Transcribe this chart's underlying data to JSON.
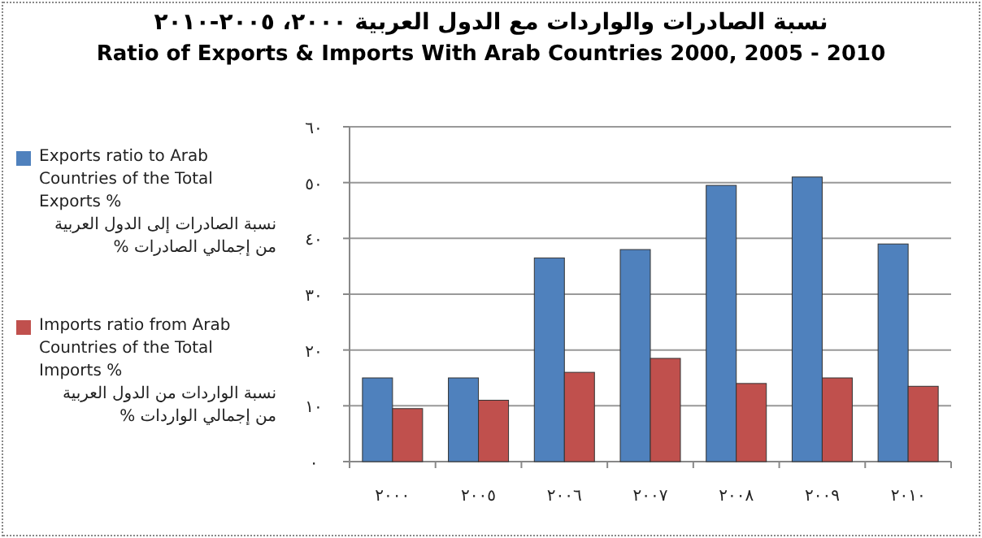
{
  "chart_data": {
    "type": "bar",
    "title": "نسبة الصادرات والواردات مع الدول العربية ٢٠٠٠، ٢٠٠٥-٢٠١٠",
    "subtitle": "Ratio of Exports & Imports With Arab Countries 2000, 2005 - 2010",
    "categories": [
      "٢٠٠٠",
      "٢٠٠٥",
      "٢٠٠٦",
      "٢٠٠٧",
      "٢٠٠٨",
      "٢٠٠٩",
      "٢٠١٠"
    ],
    "series": [
      {
        "name": "Exports ratio to Arab Countries of the Total Exports %\nنسبة الصادرات إلى الدول العربية من إجمالي الصادرات %",
        "color": "#4f81bd",
        "values": [
          15,
          15,
          36.5,
          38,
          49.5,
          51,
          39
        ]
      },
      {
        "name": "Imports ratio from Arab Countries of the Total Imports %\nنسبة الواردات من الدول العربية من إجمالي الواردات %",
        "color": "#c0504d",
        "values": [
          9.5,
          11,
          16,
          18.5,
          14,
          15,
          13.5
        ]
      }
    ],
    "ylim": [
      0,
      60
    ],
    "yticks": [
      {
        "value": 0,
        "label": "٠"
      },
      {
        "value": 10,
        "label": "١٠"
      },
      {
        "value": 20,
        "label": "٢٠"
      },
      {
        "value": 30,
        "label": "٣٠"
      },
      {
        "value": 40,
        "label": "٤٠"
      },
      {
        "value": 50,
        "label": "٥٠"
      },
      {
        "value": 60,
        "label": "٦٠"
      }
    ],
    "grid": "y",
    "legend": "left"
  }
}
